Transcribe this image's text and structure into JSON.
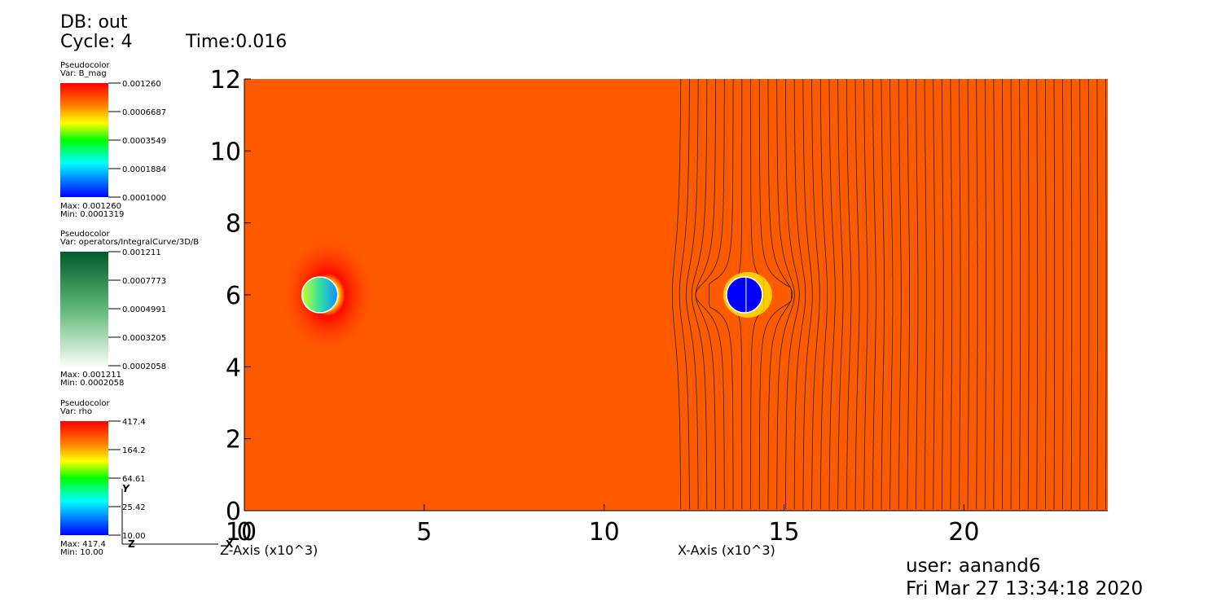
{
  "header": {
    "db": "DB: out",
    "cycle": "Cycle: 4",
    "time": "Time:0.016"
  },
  "legends": [
    {
      "plot": "Pseudocolor",
      "var": "Var: B_mag",
      "labels": [
        "0.001260",
        "0.0006687",
        "0.0003549",
        "0.0001884",
        "0.0001000"
      ],
      "max": "Max:  0.001260",
      "min": "Min:  0.0001319"
    },
    {
      "plot": "Pseudocolor",
      "var": "Var: operators/IntegralCurve/3D/B",
      "labels": [
        "0.001211",
        "0.0007773",
        "0.0004991",
        "0.0003205",
        "0.0002058"
      ],
      "max": "Max:  0.001211",
      "min": "Min:  0.0002058"
    },
    {
      "plot": "Pseudocolor",
      "var": "Var: rho",
      "labels": [
        "417.4",
        "164.2",
        "64.61",
        "25.42",
        "10.00"
      ],
      "max": "Max:  417.4",
      "min": "Min:  10.00"
    }
  ],
  "plot": {
    "xlim": [
      0,
      24
    ],
    "ylim": [
      0,
      12
    ],
    "xticks": [
      0,
      5,
      10,
      15,
      20
    ],
    "yticks": [
      0,
      2,
      4,
      6,
      8,
      10,
      12
    ],
    "z_tick": "10",
    "x_label": "X-Axis (x10^3)",
    "z_label": "Z-Axis (x10^3)"
  },
  "triad": {
    "y": "Y",
    "z": "Z",
    "x": "X"
  },
  "footer": {
    "user": "user: aanand6",
    "date": "Fri Mar 27 13:34:18 2020"
  }
}
